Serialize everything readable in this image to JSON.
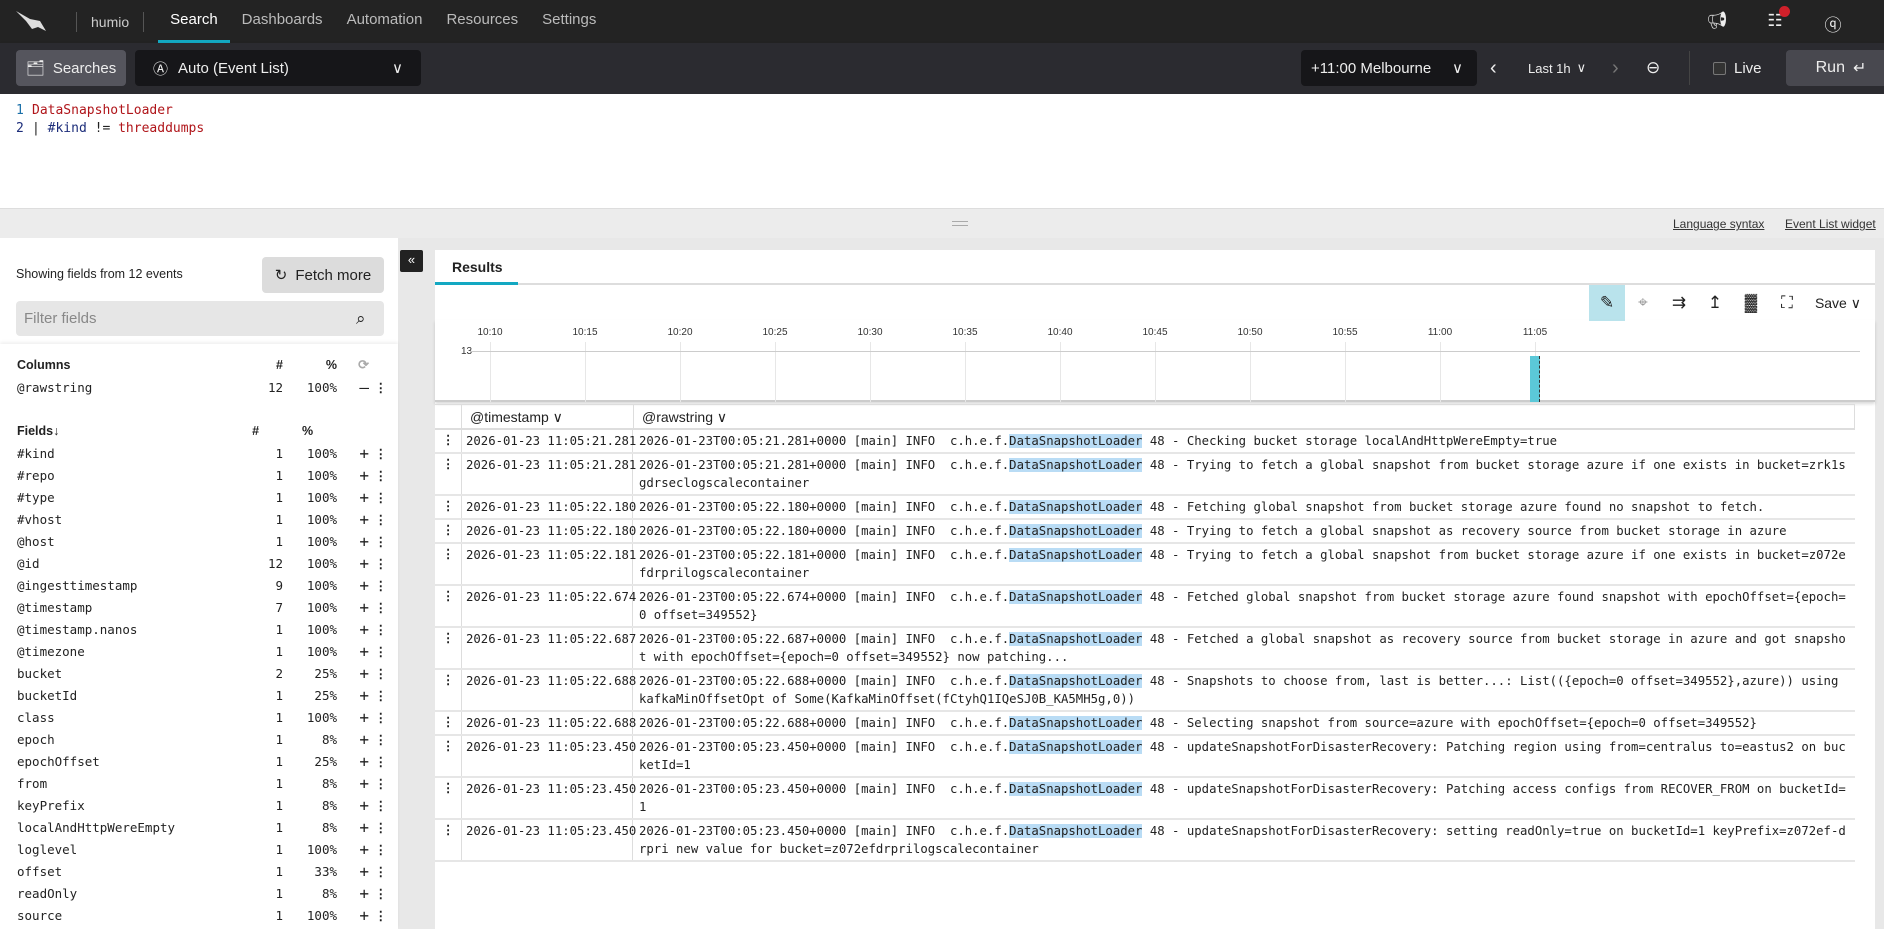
{
  "nav": {
    "brand": "humio",
    "tabs": [
      "Search",
      "Dashboards",
      "Automation",
      "Resources",
      "Settings"
    ],
    "active": "Search",
    "icons": [
      "megaphone-icon",
      "notifications-icon",
      "help-icon"
    ]
  },
  "toolbar": {
    "searches": "Searches",
    "mode": "Auto (Event List)",
    "timezone": "+11:00 Melbourne",
    "range": "Last 1h",
    "live": "Live",
    "run": "Run"
  },
  "query": {
    "line1": "DataSnapshotLoader",
    "line2_pipe": "|",
    "line2_field": "#kind",
    "line2_op": "!=",
    "line2_value": "threaddumps"
  },
  "links": {
    "syntax": "Language syntax",
    "widget": "Event List widget"
  },
  "fields_panel": {
    "showing": "Showing fields from 12 events",
    "fetch": "Fetch more",
    "filter_placeholder": "Filter fields",
    "columns_header": {
      "title": "Columns",
      "count": "#",
      "pct": "%"
    },
    "columns": [
      {
        "name": "@rawstring",
        "count": "12",
        "pct": "100%"
      }
    ],
    "fields_header": {
      "title": "Fields",
      "count": "#",
      "pct": "%"
    },
    "fields": [
      {
        "name": "#kind",
        "count": "1",
        "pct": "100%"
      },
      {
        "name": "#repo",
        "count": "1",
        "pct": "100%"
      },
      {
        "name": "#type",
        "count": "1",
        "pct": "100%"
      },
      {
        "name": "#vhost",
        "count": "1",
        "pct": "100%"
      },
      {
        "name": "@host",
        "count": "1",
        "pct": "100%"
      },
      {
        "name": "@id",
        "count": "12",
        "pct": "100%"
      },
      {
        "name": "@ingesttimestamp",
        "count": "9",
        "pct": "100%"
      },
      {
        "name": "@timestamp",
        "count": "7",
        "pct": "100%"
      },
      {
        "name": "@timestamp.nanos",
        "count": "1",
        "pct": "100%"
      },
      {
        "name": "@timezone",
        "count": "1",
        "pct": "100%"
      },
      {
        "name": "bucket",
        "count": "2",
        "pct": "25%"
      },
      {
        "name": "bucketId",
        "count": "1",
        "pct": "25%"
      },
      {
        "name": "class",
        "count": "1",
        "pct": "100%"
      },
      {
        "name": "epoch",
        "count": "1",
        "pct": "8%"
      },
      {
        "name": "epochOffset",
        "count": "1",
        "pct": "25%"
      },
      {
        "name": "from",
        "count": "1",
        "pct": "8%"
      },
      {
        "name": "keyPrefix",
        "count": "1",
        "pct": "8%"
      },
      {
        "name": "localAndHttpWereEmpty",
        "count": "1",
        "pct": "8%"
      },
      {
        "name": "loglevel",
        "count": "1",
        "pct": "100%"
      },
      {
        "name": "offset",
        "count": "1",
        "pct": "33%"
      },
      {
        "name": "readOnly",
        "count": "1",
        "pct": "8%"
      },
      {
        "name": "source",
        "count": "1",
        "pct": "100%"
      }
    ]
  },
  "results": {
    "tab": "Results",
    "save": "Save",
    "columns": [
      "@timestamp",
      "@rawstring"
    ]
  },
  "chart_data": {
    "type": "bar",
    "x_ticks": [
      "10:10",
      "10:15",
      "10:20",
      "10:25",
      "10:30",
      "10:35",
      "10:40",
      "10:45",
      "10:50",
      "10:55",
      "11:00",
      "11:05"
    ],
    "y_max_label": "13",
    "bars": [
      {
        "x": "11:05",
        "count": 12
      }
    ],
    "bar_color": "#5bc8d8"
  },
  "events": [
    {
      "ts": "2026-01-23 11:05:21.281",
      "pre": "2026-01-23T00:05:21.281+0000 [main] INFO  c.h.e.f.",
      "hl": "DataSnapshotLoader",
      "post": " 48 - Checking bucket storage localAndHttpWereEmpty=true"
    },
    {
      "ts": "2026-01-23 11:05:21.281",
      "pre": "2026-01-23T00:05:21.281+0000 [main] INFO  c.h.e.f.",
      "hl": "DataSnapshotLoader",
      "post": " 48 - Trying to fetch a global snapshot from bucket storage azure if one exists in bucket=zrk1sgdrseclogscalecontainer"
    },
    {
      "ts": "2026-01-23 11:05:22.180",
      "pre": "2026-01-23T00:05:22.180+0000 [main] INFO  c.h.e.f.",
      "hl": "DataSnapshotLoader",
      "post": " 48 - Fetching global snapshot from bucket storage azure found no snapshot to fetch."
    },
    {
      "ts": "2026-01-23 11:05:22.180",
      "pre": "2026-01-23T00:05:22.180+0000 [main] INFO  c.h.e.f.",
      "hl": "DataSnapshotLoader",
      "post": " 48 - Trying to fetch a global snapshot as recovery source from bucket storage in azure"
    },
    {
      "ts": "2026-01-23 11:05:22.181",
      "pre": "2026-01-23T00:05:22.181+0000 [main] INFO  c.h.e.f.",
      "hl": "DataSnapshotLoader",
      "post": " 48 - Trying to fetch a global snapshot from bucket storage azure if one exists in bucket=z072efdrprilogscalecontainer"
    },
    {
      "ts": "2026-01-23 11:05:22.674",
      "pre": "2026-01-23T00:05:22.674+0000 [main] INFO  c.h.e.f.",
      "hl": "DataSnapshotLoader",
      "post": " 48 - Fetched global snapshot from bucket storage azure found snapshot with epochOffset={epoch=0 offset=349552}"
    },
    {
      "ts": "2026-01-23 11:05:22.687",
      "pre": "2026-01-23T00:05:22.687+0000 [main] INFO  c.h.e.f.",
      "hl": "DataSnapshotLoader",
      "post": " 48 - Fetched a global snapshot as recovery source from bucket storage in azure and got snapshot with epochOffset={epoch=0 offset=349552} now patching..."
    },
    {
      "ts": "2026-01-23 11:05:22.688",
      "pre": "2026-01-23T00:05:22.688+0000 [main] INFO  c.h.e.f.",
      "hl": "DataSnapshotLoader",
      "post": " 48 - Snapshots to choose from, last is better...: List(({epoch=0 offset=349552},azure)) using kafkaMinOffsetOpt of Some(KafkaMinOffset(fCtyhQ1IQeSJ0B_KA5MH5g,0))"
    },
    {
      "ts": "2026-01-23 11:05:22.688",
      "pre": "2026-01-23T00:05:22.688+0000 [main] INFO  c.h.e.f.",
      "hl": "DataSnapshotLoader",
      "post": " 48 - Selecting snapshot from source=azure with epochOffset={epoch=0 offset=349552}"
    },
    {
      "ts": "2026-01-23 11:05:23.450",
      "pre": "2026-01-23T00:05:23.450+0000 [main] INFO  c.h.e.f.",
      "hl": "DataSnapshotLoader",
      "post": " 48 - updateSnapshotForDisasterRecovery: Patching region using from=centralus to=eastus2 on bucketId=1"
    },
    {
      "ts": "2026-01-23 11:05:23.450",
      "pre": "2026-01-23T00:05:23.450+0000 [main] INFO  c.h.e.f.",
      "hl": "DataSnapshotLoader",
      "post": " 48 - updateSnapshotForDisasterRecovery: Patching access configs from RECOVER_FROM on bucketId=1"
    },
    {
      "ts": "2026-01-23 11:05:23.450",
      "pre": "2026-01-23T00:05:23.450+0000 [main] INFO  c.h.e.f.",
      "hl": "DataSnapshotLoader",
      "post": " 48 - updateSnapshotForDisasterRecovery: setting readOnly=true on bucketId=1 keyPrefix=z072ef-drpri new value for bucket=z072efdrprilogscalecontainer"
    }
  ]
}
